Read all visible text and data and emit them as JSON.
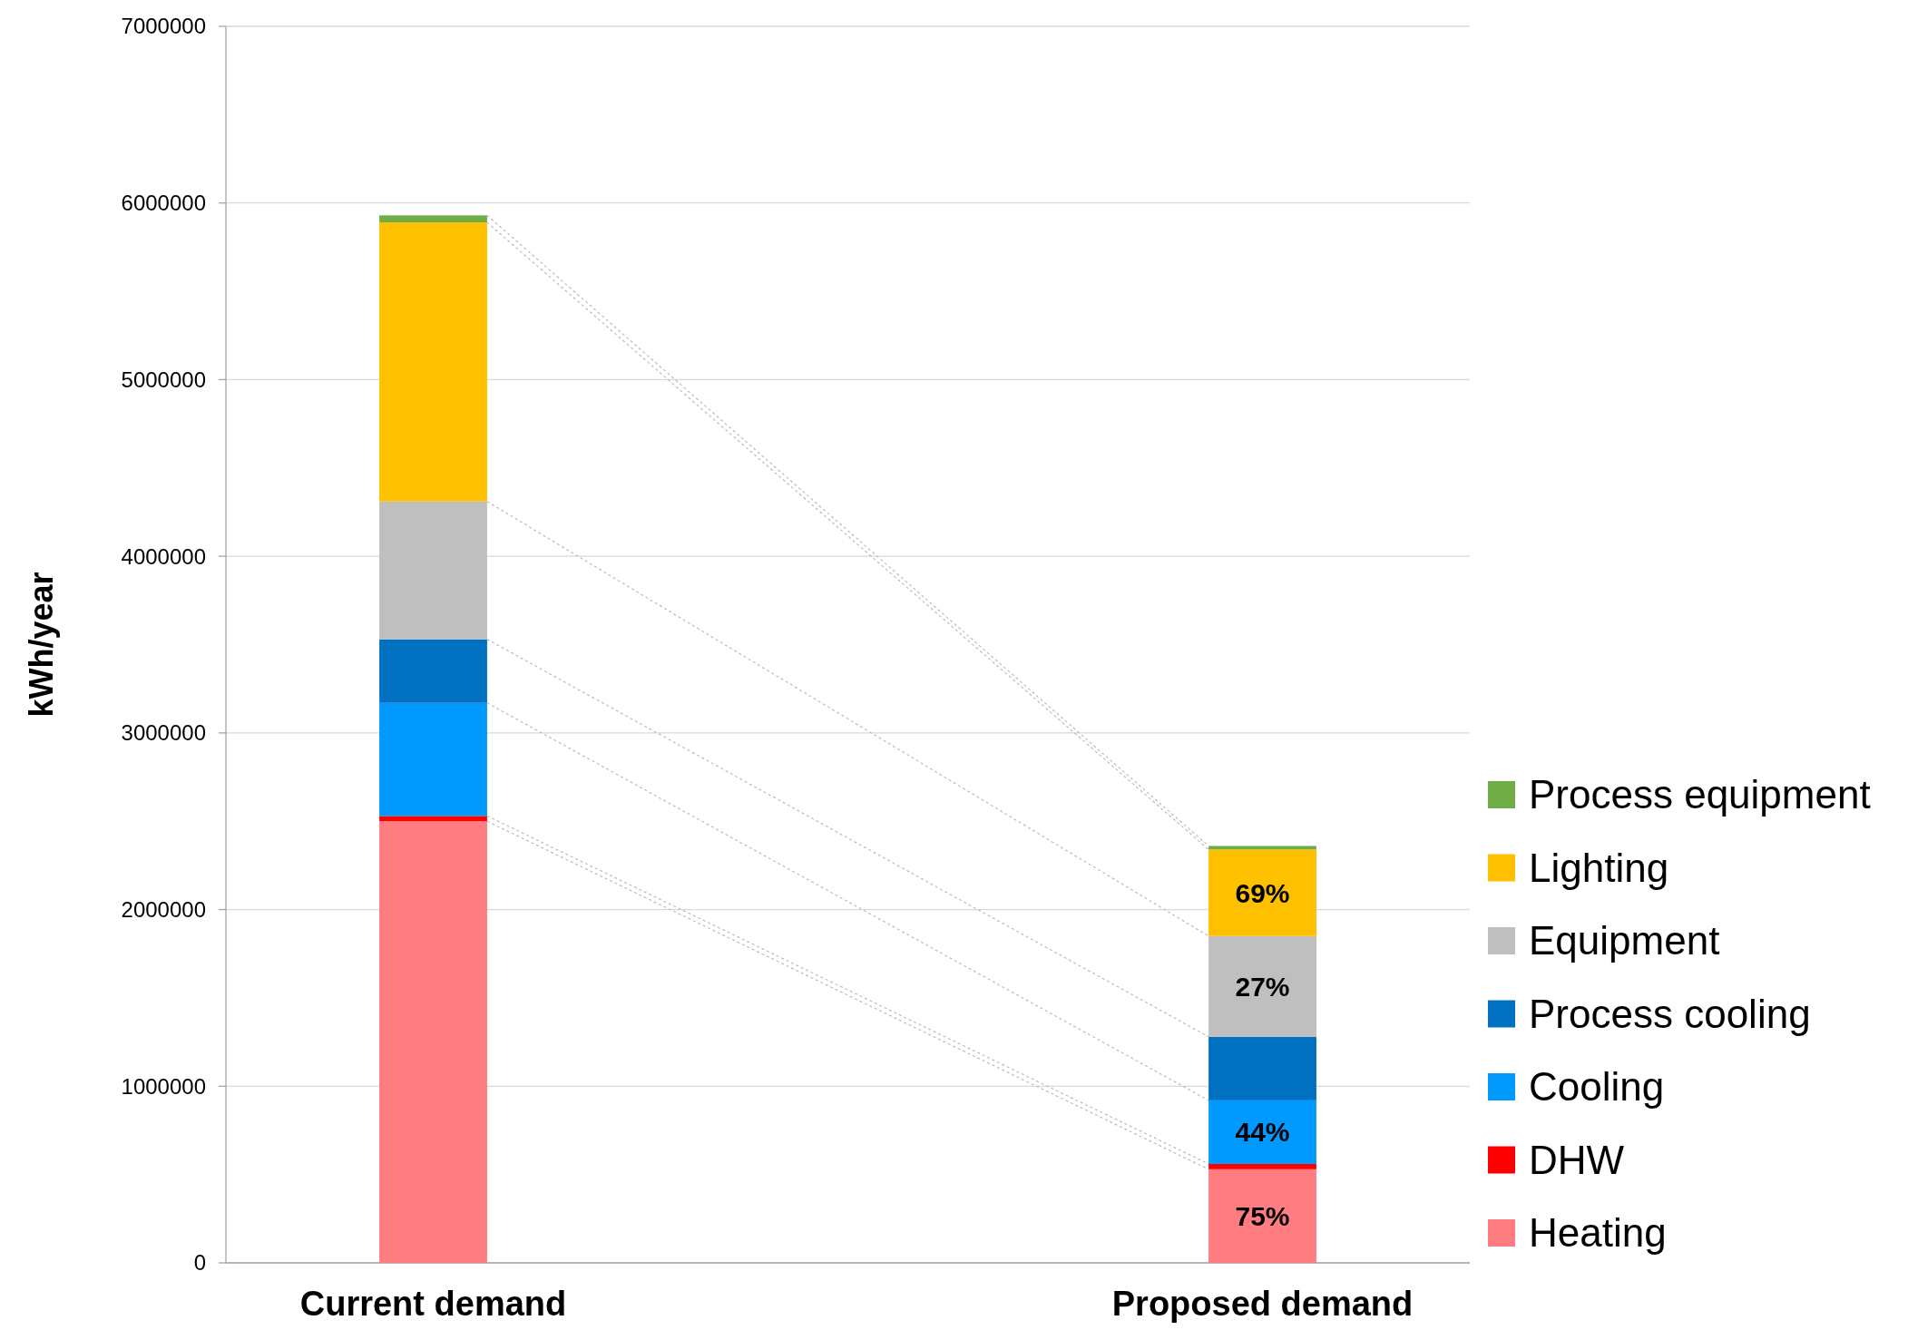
{
  "chart_data": {
    "type": "bar",
    "stacked": true,
    "ylabel": "kWh/year",
    "categories": [
      "Current demand",
      "Proposed demand"
    ],
    "ylim": [
      0,
      7000000
    ],
    "yticks": [
      0,
      1000000,
      2000000,
      3000000,
      4000000,
      5000000,
      6000000,
      7000000
    ],
    "grid": "y",
    "legend": "right",
    "series": [
      {
        "name": "Heating",
        "color": "#ff7c80",
        "values": [
          2500000,
          530000
        ]
      },
      {
        "name": "DHW",
        "color": "#ff0000",
        "values": [
          30000,
          30000
        ]
      },
      {
        "name": "Cooling",
        "color": "#0099ff",
        "values": [
          640000,
          360000
        ]
      },
      {
        "name": "Process cooling",
        "color": "#0070c0",
        "values": [
          360000,
          360000
        ]
      },
      {
        "name": "Equipment",
        "color": "#bfbfbf",
        "values": [
          780000,
          570000
        ]
      },
      {
        "name": "Lighting",
        "color": "#ffc000",
        "values": [
          1580000,
          490000
        ]
      },
      {
        "name": "Process equipment",
        "color": "#70ad47",
        "values": [
          40000,
          20000
        ]
      }
    ],
    "annotations": [
      {
        "text": "75%",
        "x": "Proposed demand",
        "y": 530000
      },
      {
        "text": "44%",
        "x": "Proposed demand",
        "y": 920000
      },
      {
        "text": "27%",
        "x": "Proposed demand",
        "y": 1850000
      },
      {
        "text": "69%",
        "x": "Proposed demand",
        "y": 2340000
      }
    ]
  }
}
